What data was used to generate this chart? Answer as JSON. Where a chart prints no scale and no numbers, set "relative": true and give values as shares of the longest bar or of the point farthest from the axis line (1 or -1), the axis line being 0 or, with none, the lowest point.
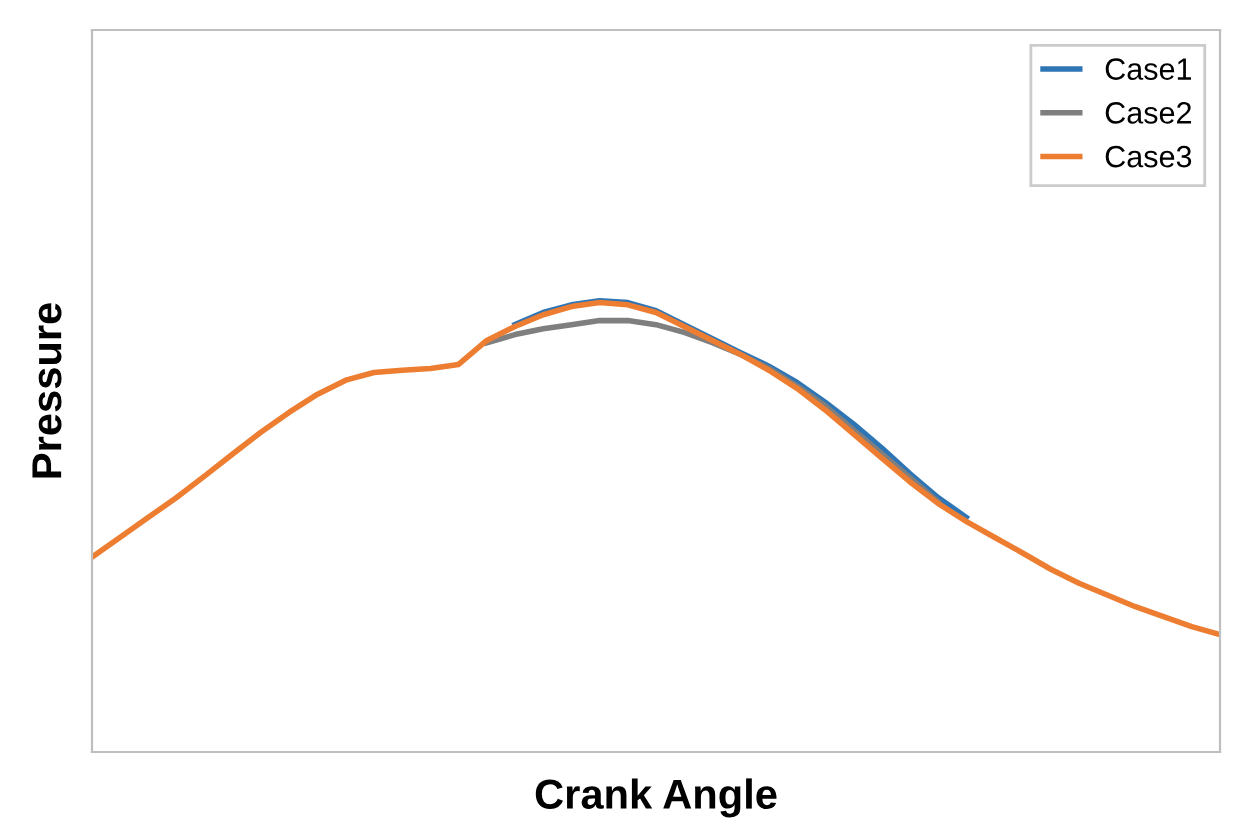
{
  "chart_data": {
    "type": "line",
    "relative": true,
    "xlabel": "Crank Angle",
    "ylabel": "Pressure",
    "legend": "top right",
    "grid": false,
    "marker": "none",
    "line_style": "solid",
    "categories": [
      null,
      null,
      null,
      null,
      null,
      null,
      null,
      null,
      null,
      null,
      null,
      null,
      null,
      null,
      null,
      null,
      null,
      null,
      null,
      null,
      null,
      null,
      null,
      null,
      null,
      null,
      null,
      null,
      null,
      null,
      null,
      null,
      null,
      null,
      null,
      null,
      null,
      null,
      null,
      null,
      null
    ],
    "series": [
      {
        "name": "Case1",
        "color": "#2e75b6",
        "values": [
          null,
          null,
          null,
          null,
          null,
          null,
          null,
          null,
          null,
          null,
          null,
          null,
          null,
          null,
          null,
          0.947,
          0.974,
          0.991,
          1.0,
          0.996,
          0.978,
          0.947,
          0.916,
          0.885,
          0.855,
          0.819,
          0.775,
          0.727,
          0.674,
          0.617,
          0.564,
          0.52,
          null,
          null,
          null,
          null,
          null,
          null,
          null,
          null,
          null
        ]
      },
      {
        "name": "Case2",
        "color": "#7f7f7f",
        "values": [
          null,
          null,
          null,
          null,
          null,
          null,
          null,
          null,
          null,
          null,
          null,
          null,
          null,
          null,
          0.907,
          0.925,
          0.938,
          0.947,
          0.956,
          0.956,
          0.947,
          0.93,
          0.907,
          0.881,
          0.85,
          0.811,
          0.767,
          0.714,
          0.661,
          0.608,
          0.555,
          null,
          null,
          null,
          null,
          null,
          null,
          null,
          null,
          null,
          null
        ]
      },
      {
        "name": "Case3",
        "color": "#ed7d31",
        "values": [
          0.432,
          0.476,
          0.52,
          0.564,
          0.612,
          0.661,
          0.709,
          0.753,
          0.793,
          0.824,
          0.841,
          0.846,
          0.85,
          0.859,
          0.912,
          0.943,
          0.969,
          0.987,
          0.996,
          0.991,
          0.974,
          0.943,
          0.912,
          0.881,
          0.846,
          0.806,
          0.758,
          0.705,
          0.652,
          0.599,
          0.551,
          0.511,
          0.476,
          0.441,
          0.405,
          0.374,
          0.348,
          0.322,
          0.3,
          0.278,
          0.26
        ]
      }
    ]
  }
}
